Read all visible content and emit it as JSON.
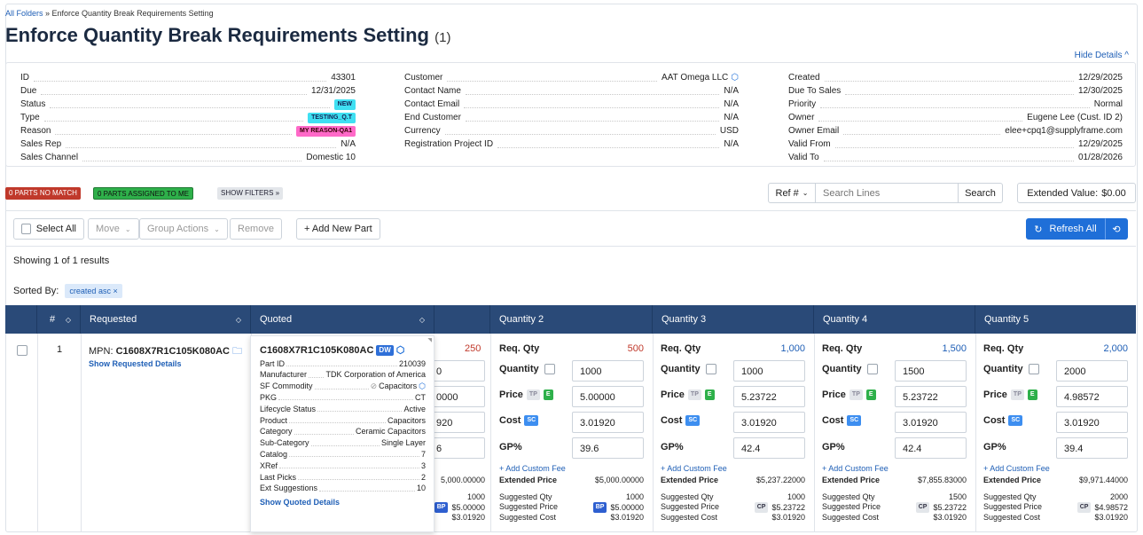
{
  "breadcrumb": {
    "root": "All Folders",
    "sep": " » ",
    "current": "Enforce Quantity Break Requirements Setting"
  },
  "page": {
    "title": "Enforce Quantity Break Requirements Setting",
    "count": "(1)",
    "hide_details": "Hide Details ^"
  },
  "details": {
    "col1": [
      {
        "k": "ID",
        "v": "43301"
      },
      {
        "k": "Due",
        "v": "12/31/2025"
      },
      {
        "k": "Status",
        "v": "NEW"
      },
      {
        "k": "Type",
        "v": "TESTING_Q.T"
      },
      {
        "k": "Reason",
        "v": "MY REASON-QA1"
      },
      {
        "k": "Sales Rep",
        "v": "N/A"
      },
      {
        "k": "Sales Channel",
        "v": "Domestic 10"
      }
    ],
    "col2": [
      {
        "k": "Customer",
        "v": "AAT Omega LLC"
      },
      {
        "k": "Contact Name",
        "v": "N/A"
      },
      {
        "k": "Contact Email",
        "v": "N/A"
      },
      {
        "k": "End Customer",
        "v": "N/A"
      },
      {
        "k": "Currency",
        "v": "USD"
      },
      {
        "k": "Registration Project ID",
        "v": "N/A"
      }
    ],
    "col3": [
      {
        "k": "Created",
        "v": "12/29/2025"
      },
      {
        "k": "Due To Sales",
        "v": "12/30/2025"
      },
      {
        "k": "Priority",
        "v": "Normal"
      },
      {
        "k": "Owner",
        "v": "Eugene Lee (Cust. ID 2)"
      },
      {
        "k": "Owner Email",
        "v": "elee+cpq1@supplyframe.com"
      },
      {
        "k": "Valid From",
        "v": "12/29/2025"
      },
      {
        "k": "Valid To",
        "v": "01/28/2026"
      }
    ]
  },
  "filters": {
    "no_match": "0 PARTS NO MATCH",
    "assigned": "0 PARTS ASSIGNED TO ME",
    "show": "SHOW FILTERS »"
  },
  "search": {
    "ref": "Ref #",
    "placeholder": "Search Lines",
    "button": "Search",
    "ext_label": "Extended Value:",
    "ext_value": "$0.00"
  },
  "toolbar": {
    "select_all": "Select All",
    "move": "Move",
    "group": "Group Actions",
    "remove": "Remove",
    "add": "+ Add New Part",
    "refresh": "Refresh All"
  },
  "results": {
    "showing": "Showing 1 of 1 results",
    "sorted_label": "Sorted By:",
    "sorted_value": "created asc"
  },
  "table": {
    "hash": "#",
    "requested": "Requested",
    "quoted": "Quoted",
    "q2": "Quantity 2",
    "q3": "Quantity 3",
    "q4": "Quantity 4",
    "q5": "Quantity 5"
  },
  "row": {
    "num": "1",
    "mpn_label": "MPN:",
    "mpn": "C1608X7R1C105K080AC",
    "show_req": "Show Requested Details",
    "quoted_mpn": "C1608X7R1C105K080AC",
    "dw": "DW",
    "show_quoted": "Show Quoted Details"
  },
  "popup": [
    {
      "k": "Part ID",
      "v": "210039"
    },
    {
      "k": "Manufacturer",
      "v": "TDK Corporation of America"
    },
    {
      "k": "SF Commodity",
      "v": "Capacitors"
    },
    {
      "k": "PKG",
      "v": "CT"
    },
    {
      "k": "Lifecycle Status",
      "v": "Active"
    },
    {
      "k": "Product",
      "v": "Capacitors"
    },
    {
      "k": "Category",
      "v": "Ceramic Capacitors"
    },
    {
      "k": "Sub-Category",
      "v": "Single Layer"
    },
    {
      "k": "Catalog",
      "v": "7"
    },
    {
      "k": "XRef",
      "v": "3"
    },
    {
      "k": "Last Picks",
      "v": "2"
    },
    {
      "k": "Ext Suggestions",
      "v": "10"
    }
  ],
  "labels": {
    "req_qty": "Req. Qty",
    "quantity": "Quantity",
    "price": "Price",
    "cost": "Cost",
    "gp": "GP%",
    "add_fee": "+ Add Custom Fee",
    "ext_price": "Extended Price",
    "sugg_qty": "Suggested Qty",
    "sugg_price": "Suggested Price",
    "sugg_cost": "Suggested Cost",
    "tp": "TP",
    "e": "E",
    "sc": "SC",
    "bp": "BP",
    "cp": "CP"
  },
  "q1": {
    "req": "250",
    "qty": "0",
    "price": "0000",
    "cost": "920",
    "gp": "6",
    "ext": "5,000.00000",
    "sqty": "1000",
    "sprice": "$5.00000",
    "scost": "$3.01920"
  },
  "q2": {
    "req": "500",
    "qty": "1000",
    "price": "5.00000",
    "cost": "3.01920",
    "gp": "39.6",
    "ext": "$5,000.00000",
    "sqty": "1000",
    "stag": "BP",
    "sprice": "$5.00000",
    "scost": "$3.01920"
  },
  "q3": {
    "req": "1,000",
    "qty": "1000",
    "price": "5.23722",
    "cost": "3.01920",
    "gp": "42.4",
    "ext": "$5,237.22000",
    "sqty": "1000",
    "stag": "CP",
    "sprice": "$5.23722",
    "scost": "$3.01920"
  },
  "q4": {
    "req": "1,500",
    "qty": "1500",
    "price": "5.23722",
    "cost": "3.01920",
    "gp": "42.4",
    "ext": "$7,855.83000",
    "sqty": "1500",
    "stag": "CP",
    "sprice": "$5.23722",
    "scost": "$3.01920"
  },
  "q5": {
    "req": "2,000",
    "qty": "2000",
    "price": "4.98572",
    "cost": "3.01920",
    "gp": "39.4",
    "ext": "$9,971.44000",
    "sqty": "2000",
    "stag": "CP",
    "sprice": "$4.98572",
    "scost": "$3.01920"
  },
  "colors": {
    "header": "#2a4a78",
    "accent": "#1f5fb6",
    "red": "#c0392b",
    "green": "#2eb04a"
  }
}
